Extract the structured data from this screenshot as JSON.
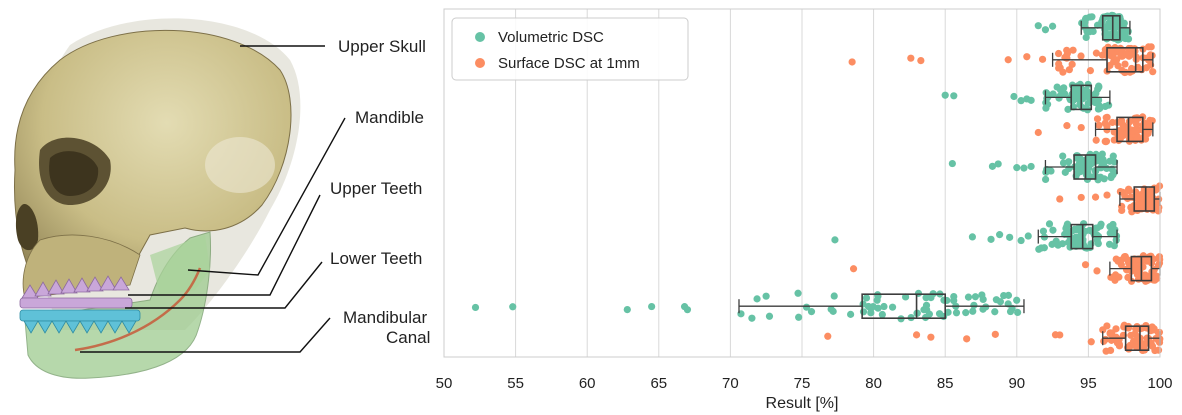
{
  "figure": {
    "labels": [
      "Upper Skull",
      "Mandible",
      "Upper Teeth",
      "Lower Teeth",
      "Mandibular Canal"
    ]
  },
  "colors": {
    "volumetric": "#66c2a5",
    "surface": "#fc8d62",
    "box_edge": "#3d3d3d"
  },
  "chart_data": {
    "type": "box-strip",
    "orientation": "horizontal",
    "xlabel": "Result [%]",
    "xlim": [
      50,
      100
    ],
    "xticks": [
      50,
      55,
      60,
      65,
      70,
      75,
      80,
      85,
      90,
      95,
      100
    ],
    "grid": "vertical",
    "legend_position": "top-left",
    "categories": [
      "Upper Skull",
      "Mandible",
      "Upper Teeth",
      "Lower Teeth",
      "Mandibular Canal"
    ],
    "series": [
      {
        "name": "Volumetric DSC",
        "boxes": [
          {
            "whisker_low": 94.5,
            "q1": 96.0,
            "median": 96.7,
            "q3": 97.2,
            "whisker_high": 97.9
          },
          {
            "whisker_low": 92.0,
            "q1": 93.8,
            "median": 94.5,
            "q3": 95.2,
            "whisker_high": 96.5
          },
          {
            "whisker_low": 92.0,
            "q1": 94.0,
            "median": 94.8,
            "q3": 95.5,
            "whisker_high": 97.0
          },
          {
            "whisker_low": 91.5,
            "q1": 93.8,
            "median": 94.6,
            "q3": 95.3,
            "whisker_high": 97.0
          },
          {
            "whisker_low": 70.6,
            "q1": 79.2,
            "median": 83.0,
            "q3": 85.0,
            "whisker_high": 90.5
          }
        ],
        "outliers": [
          [
            91.5,
            92.0,
            92.5
          ],
          [
            85.0,
            85.6,
            89.8,
            90.3,
            90.7,
            91.0
          ],
          [
            85.5,
            88.3,
            88.7,
            90.0,
            90.5,
            91.0
          ],
          [
            77.3,
            86.9,
            88.2,
            88.8,
            89.5,
            90.3,
            90.8
          ],
          [
            52.2,
            54.8,
            62.8,
            64.5,
            66.8,
            67.0
          ]
        ]
      },
      {
        "name": "Surface DSC at 1mm",
        "boxes": [
          {
            "whisker_low": 92.5,
            "q1": 96.3,
            "median": 98.3,
            "q3": 98.8,
            "whisker_high": 99.5
          },
          {
            "whisker_low": 95.5,
            "q1": 97.0,
            "median": 97.8,
            "q3": 98.8,
            "whisker_high": 99.5
          },
          {
            "whisker_low": 97.2,
            "q1": 98.2,
            "median": 99.0,
            "q3": 99.6,
            "whisker_high": 100.0
          },
          {
            "whisker_low": 96.5,
            "q1": 98.0,
            "median": 98.7,
            "q3": 99.4,
            "whisker_high": 100.0
          },
          {
            "whisker_low": 96.0,
            "q1": 97.6,
            "median": 98.6,
            "q3": 99.2,
            "whisker_high": 100.0
          }
        ],
        "outliers": [
          [
            78.5,
            82.6,
            83.3,
            89.4,
            90.7,
            91.8
          ],
          [
            91.5,
            93.5,
            94.5
          ],
          [
            93.0,
            94.5,
            95.5,
            96.3
          ],
          [
            78.6,
            94.8,
            95.6
          ],
          [
            76.8,
            83.0,
            84.0,
            86.5,
            88.5,
            92.7,
            93.0,
            95.2
          ]
        ]
      }
    ]
  }
}
